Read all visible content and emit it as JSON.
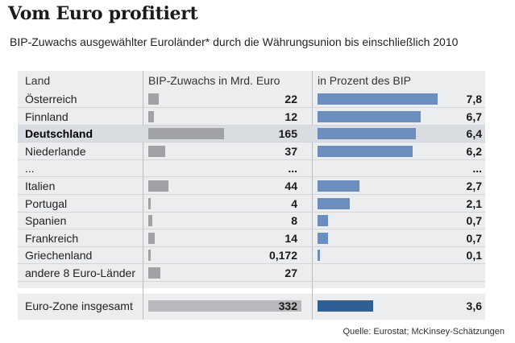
{
  "title": "Vom Euro profitiert",
  "subtitle": "BIP-Zuwachs ausgewählter Euroländer* durch die Währungsunion bis einschließlich 2010",
  "source": "Quelle: Eurostat; McKinsey-Schätzungen",
  "colors": {
    "gdp_bar": "#a0a2a6",
    "pct_bar": "#6b8ebc",
    "total_gdp_bar": "#b7b9bd",
    "total_pct_bar": "#2f5f94",
    "panel": "#ecedef"
  },
  "chart_data": {
    "type": "table",
    "columns": [
      "Land",
      "BIP-Zuwachs in Mrd. Euro",
      "in Prozent des BIP"
    ],
    "rows": [
      {
        "country": "Österreich",
        "gdp": 22,
        "gdp_label": "22",
        "pct": 7.8,
        "pct_label": "7,8"
      },
      {
        "country": "Finnland",
        "gdp": 12,
        "gdp_label": "12",
        "pct": 6.7,
        "pct_label": "6,7"
      },
      {
        "country": "Deutschland",
        "gdp": 165,
        "gdp_label": "165",
        "pct": 6.4,
        "pct_label": "6,4",
        "highlight": true
      },
      {
        "country": "Niederlande",
        "gdp": 37,
        "gdp_label": "37",
        "pct": 6.2,
        "pct_label": "6,2"
      },
      {
        "country": "...",
        "gdp": null,
        "gdp_label": "...",
        "pct": null,
        "pct_label": "..."
      },
      {
        "country": "Italien",
        "gdp": 44,
        "gdp_label": "44",
        "pct": 2.7,
        "pct_label": "2,7"
      },
      {
        "country": "Portugal",
        "gdp": 4,
        "gdp_label": "4",
        "pct": 2.1,
        "pct_label": "2,1"
      },
      {
        "country": "Spanien",
        "gdp": 8,
        "gdp_label": "8",
        "pct": 0.7,
        "pct_label": "0,7"
      },
      {
        "country": "Frankreich",
        "gdp": 14,
        "gdp_label": "14",
        "pct": 0.7,
        "pct_label": "0,7"
      },
      {
        "country": "Griechenland",
        "gdp": 0.172,
        "gdp_label": "0,172",
        "pct": 0.1,
        "pct_label": "0,1"
      },
      {
        "country": "andere 8 Euro-Länder",
        "gdp": 27,
        "gdp_label": "27",
        "pct": null,
        "pct_label": ""
      }
    ],
    "total": {
      "country": "Euro-Zone insgesamt",
      "gdp": 332,
      "gdp_label": "332",
      "pct": 3.6,
      "pct_label": "3,6"
    },
    "gdp_range": [
      0,
      332
    ],
    "pct_range": [
      0,
      7.8
    ]
  }
}
